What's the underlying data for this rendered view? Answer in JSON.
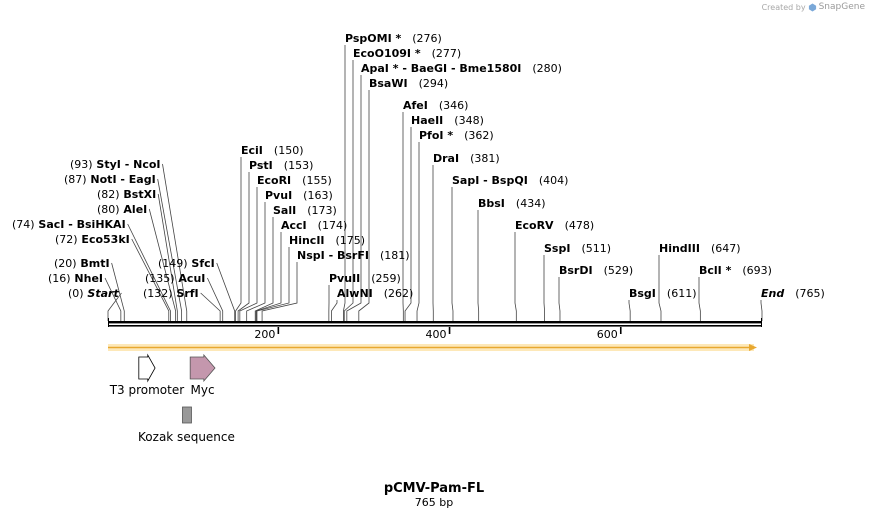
{
  "credit": {
    "prefix": "Created by",
    "brand": "SnapGene"
  },
  "plasmid": {
    "name": "pCMV-Pam-FL",
    "length_label": "765 bp",
    "length": 765
  },
  "scale": {
    "ticks": [
      {
        "bp": 200,
        "label": "200"
      },
      {
        "bp": 400,
        "label": "400"
      },
      {
        "bp": 600,
        "label": "600"
      }
    ]
  },
  "sites": [
    {
      "bp": 1,
      "parts": [
        {
          "kind": "pos",
          "text": "(0)"
        },
        {
          "kind": "name",
          "text": "Start",
          "italic": true
        }
      ]
    },
    {
      "bp": 16,
      "parts": [
        {
          "kind": "pos",
          "text": "(16)"
        },
        {
          "kind": "name",
          "text": "NheI"
        }
      ]
    },
    {
      "bp": 20,
      "parts": [
        {
          "kind": "pos",
          "text": "(20)"
        },
        {
          "kind": "name",
          "text": "BmtI"
        }
      ]
    },
    {
      "bp": 72,
      "parts": [
        {
          "kind": "pos",
          "text": "(72)"
        },
        {
          "kind": "name",
          "text": "Eco53kI"
        }
      ]
    },
    {
      "bp": 74,
      "parts": [
        {
          "kind": "pos",
          "text": "(74)"
        },
        {
          "kind": "name",
          "text": "SacI"
        },
        {
          "kind": "sep",
          "text": "-"
        },
        {
          "kind": "name",
          "text": "BsiHKAI"
        }
      ]
    },
    {
      "bp": 80,
      "parts": [
        {
          "kind": "pos",
          "text": "(80)"
        },
        {
          "kind": "name",
          "text": "AleI"
        }
      ]
    },
    {
      "bp": 82,
      "parts": [
        {
          "kind": "pos",
          "text": "(82)"
        },
        {
          "kind": "name",
          "text": "BstXI"
        }
      ]
    },
    {
      "bp": 87,
      "parts": [
        {
          "kind": "pos",
          "text": "(87)"
        },
        {
          "kind": "name",
          "text": "NotI"
        },
        {
          "kind": "sep",
          "text": "-"
        },
        {
          "kind": "name",
          "text": "EagI"
        }
      ]
    },
    {
      "bp": 93,
      "parts": [
        {
          "kind": "pos",
          "text": "(93)"
        },
        {
          "kind": "name",
          "text": "StyI"
        },
        {
          "kind": "sep",
          "text": "-"
        },
        {
          "kind": "name",
          "text": "NcoI"
        }
      ]
    },
    {
      "bp": 132,
      "parts": [
        {
          "kind": "pos",
          "text": "(132)"
        },
        {
          "kind": "name",
          "text": "SrfI"
        }
      ]
    },
    {
      "bp": 135,
      "parts": [
        {
          "kind": "pos",
          "text": "(135)"
        },
        {
          "kind": "name",
          "text": "AcuI"
        }
      ]
    },
    {
      "bp": 149,
      "parts": [
        {
          "kind": "pos",
          "text": "(149)"
        },
        {
          "kind": "name",
          "text": "SfcI"
        }
      ]
    },
    {
      "bp": 150,
      "parts": [
        {
          "kind": "name",
          "text": "EciI"
        },
        {
          "kind": "pos",
          "text": "(150)"
        }
      ]
    },
    {
      "bp": 153,
      "parts": [
        {
          "kind": "name",
          "text": "PstI"
        },
        {
          "kind": "pos",
          "text": "(153)"
        }
      ]
    },
    {
      "bp": 155,
      "parts": [
        {
          "kind": "name",
          "text": "EcoRI"
        },
        {
          "kind": "pos",
          "text": "(155)"
        }
      ]
    },
    {
      "bp": 163,
      "parts": [
        {
          "kind": "name",
          "text": "PvuI"
        },
        {
          "kind": "pos",
          "text": "(163)"
        }
      ]
    },
    {
      "bp": 173,
      "parts": [
        {
          "kind": "name",
          "text": "SalI"
        },
        {
          "kind": "pos",
          "text": "(173)"
        }
      ]
    },
    {
      "bp": 174,
      "parts": [
        {
          "kind": "name",
          "text": "AccI"
        },
        {
          "kind": "pos",
          "text": "(174)"
        }
      ]
    },
    {
      "bp": 175,
      "parts": [
        {
          "kind": "name",
          "text": "HincII"
        },
        {
          "kind": "pos",
          "text": "(175)"
        }
      ]
    },
    {
      "bp": 181,
      "parts": [
        {
          "kind": "name",
          "text": "NspI"
        },
        {
          "kind": "sep",
          "text": "-"
        },
        {
          "kind": "name",
          "text": "BsrFI"
        },
        {
          "kind": "pos",
          "text": "(181)"
        }
      ]
    },
    {
      "bp": 259,
      "parts": [
        {
          "kind": "name",
          "text": "PvuII"
        },
        {
          "kind": "pos",
          "text": "(259)"
        }
      ]
    },
    {
      "bp": 262,
      "parts": [
        {
          "kind": "name",
          "text": "AlwNI"
        },
        {
          "kind": "pos",
          "text": "(262)"
        }
      ]
    },
    {
      "bp": 276,
      "parts": [
        {
          "kind": "name",
          "text": "PspOMI *"
        },
        {
          "kind": "pos",
          "text": "(276)"
        }
      ]
    },
    {
      "bp": 277,
      "parts": [
        {
          "kind": "name",
          "text": "EcoO109I *"
        },
        {
          "kind": "pos",
          "text": "(277)"
        }
      ]
    },
    {
      "bp": 280,
      "parts": [
        {
          "kind": "name",
          "text": "ApaI *"
        },
        {
          "kind": "sep",
          "text": "-"
        },
        {
          "kind": "name",
          "text": "BaeGI"
        },
        {
          "kind": "sep",
          "text": "-"
        },
        {
          "kind": "name",
          "text": "Bme1580I"
        },
        {
          "kind": "pos",
          "text": "(280)"
        }
      ]
    },
    {
      "bp": 294,
      "parts": [
        {
          "kind": "name",
          "text": "BsaWI"
        },
        {
          "kind": "pos",
          "text": "(294)"
        }
      ]
    },
    {
      "bp": 346,
      "parts": [
        {
          "kind": "name",
          "text": "AfeI"
        },
        {
          "kind": "pos",
          "text": "(346)"
        }
      ]
    },
    {
      "bp": 348,
      "parts": [
        {
          "kind": "name",
          "text": "HaeII"
        },
        {
          "kind": "pos",
          "text": "(348)"
        }
      ]
    },
    {
      "bp": 362,
      "parts": [
        {
          "kind": "name",
          "text": "PfoI *"
        },
        {
          "kind": "pos",
          "text": "(362)"
        }
      ]
    },
    {
      "bp": 381,
      "parts": [
        {
          "kind": "name",
          "text": "DraI"
        },
        {
          "kind": "pos",
          "text": "(381)"
        }
      ]
    },
    {
      "bp": 404,
      "parts": [
        {
          "kind": "name",
          "text": "SapI"
        },
        {
          "kind": "sep",
          "text": "-"
        },
        {
          "kind": "name",
          "text": "BspQI"
        },
        {
          "kind": "pos",
          "text": "(404)"
        }
      ]
    },
    {
      "bp": 434,
      "parts": [
        {
          "kind": "name",
          "text": "BbsI"
        },
        {
          "kind": "pos",
          "text": "(434)"
        }
      ]
    },
    {
      "bp": 478,
      "parts": [
        {
          "kind": "name",
          "text": "EcoRV"
        },
        {
          "kind": "pos",
          "text": "(478)"
        }
      ]
    },
    {
      "bp": 511,
      "parts": [
        {
          "kind": "name",
          "text": "SspI"
        },
        {
          "kind": "pos",
          "text": "(511)"
        }
      ]
    },
    {
      "bp": 529,
      "parts": [
        {
          "kind": "name",
          "text": "BsrDI"
        },
        {
          "kind": "pos",
          "text": "(529)"
        }
      ]
    },
    {
      "bp": 611,
      "parts": [
        {
          "kind": "name",
          "text": "BsgI"
        },
        {
          "kind": "pos",
          "text": "(611)"
        }
      ]
    },
    {
      "bp": 647,
      "parts": [
        {
          "kind": "name",
          "text": "HindIII"
        },
        {
          "kind": "pos",
          "text": "(647)"
        }
      ]
    },
    {
      "bp": 693,
      "parts": [
        {
          "kind": "name",
          "text": "BclI *"
        },
        {
          "kind": "pos",
          "text": "(693)"
        }
      ]
    },
    {
      "bp": 765,
      "parts": [
        {
          "kind": "name",
          "text": "End",
          "italic": true
        },
        {
          "kind": "pos",
          "text": "(765)"
        }
      ]
    }
  ],
  "features": [
    {
      "name": "T3 promoter",
      "start": 37,
      "end": 56,
      "type": "promoter",
      "color": "#ffffff"
    },
    {
      "name": "Myc",
      "start": 97,
      "end": 126,
      "type": "tag",
      "color": "#c497ad"
    },
    {
      "name": "Kozak sequence",
      "start": 88,
      "end": 98,
      "type": "misc",
      "color": "#999999"
    }
  ],
  "colors": {
    "backbone": "#000000",
    "orf_fill": "#f6c45e",
    "orf_outline": "#e0a020",
    "promoter_stroke": "#000000",
    "kozak": "#999999"
  }
}
